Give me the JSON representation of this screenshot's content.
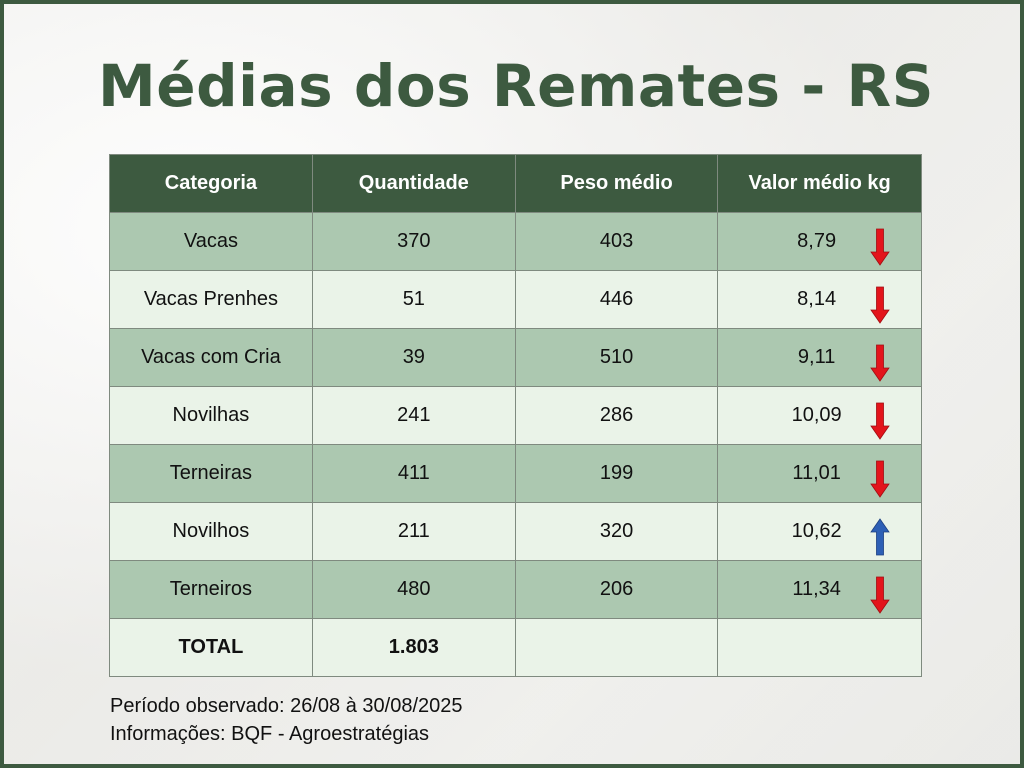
{
  "title": "Médias dos Remates - RS",
  "table": {
    "headers": [
      "Categoria",
      "Quantidade",
      "Peso médio",
      "Valor médio kg"
    ],
    "rows": [
      {
        "categoria": "Vacas",
        "quantidade": "370",
        "peso": "403",
        "valor": "8,79",
        "trend": "down"
      },
      {
        "categoria": "Vacas Prenhes",
        "quantidade": "51",
        "peso": "446",
        "valor": "8,14",
        "trend": "down"
      },
      {
        "categoria": "Vacas com Cria",
        "quantidade": "39",
        "peso": "510",
        "valor": "9,11",
        "trend": "down"
      },
      {
        "categoria": "Novilhas",
        "quantidade": "241",
        "peso": "286",
        "valor": "10,09",
        "trend": "down"
      },
      {
        "categoria": "Terneiras",
        "quantidade": "411",
        "peso": "199",
        "valor": "11,01",
        "trend": "down"
      },
      {
        "categoria": "Novilhos",
        "quantidade": "211",
        "peso": "320",
        "valor": "10,62",
        "trend": "up"
      },
      {
        "categoria": "Terneiros",
        "quantidade": "480",
        "peso": "206",
        "valor": "11,34",
        "trend": "down"
      }
    ],
    "total": {
      "label": "TOTAL",
      "quantidade": "1.803",
      "peso": "",
      "valor": ""
    }
  },
  "notes": {
    "periodo": "Período observado: 26/08 à 30/08/2025",
    "fonte": "Informações: BQF - Agroestratégias"
  },
  "colors": {
    "accent": "#3d5a40",
    "row_dark": "#acc8b0",
    "row_light": "#eaf3e8",
    "arrow_down": "#e3141b",
    "arrow_up": "#2d5fb5"
  },
  "icons": {
    "down": "arrow-down-icon",
    "up": "arrow-up-icon"
  }
}
